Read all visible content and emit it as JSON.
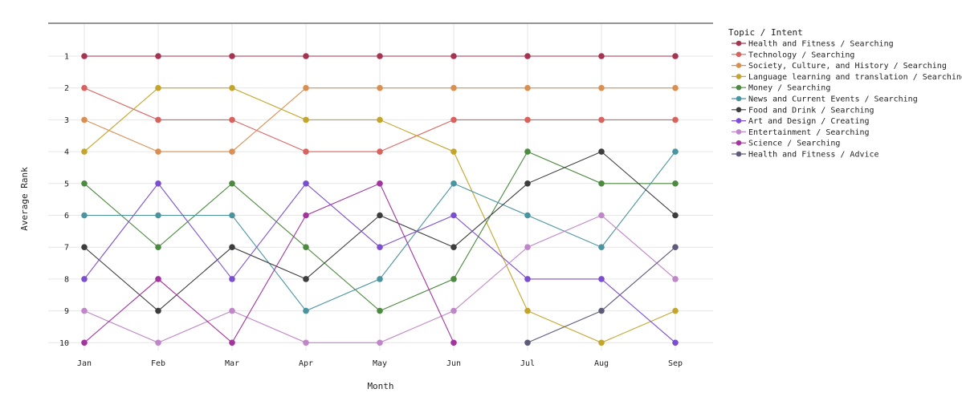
{
  "chart_data": {
    "type": "line",
    "title": "",
    "xlabel": "Month",
    "ylabel": "Average Rank",
    "categories": [
      "Jan",
      "Feb",
      "Mar",
      "Apr",
      "May",
      "Jun",
      "Jul",
      "Aug",
      "Sep"
    ],
    "y_ticks": [
      "1",
      "2",
      "3",
      "4",
      "5",
      "6",
      "7",
      "8",
      "9",
      "10"
    ],
    "ylim": [
      10,
      1
    ],
    "y_reversed": true,
    "grid": true,
    "legend_title": "Topic / Intent",
    "legend_position": "right",
    "series": [
      {
        "name": "Health and Fitness / Searching",
        "color": "#a6334f",
        "values": [
          1,
          1,
          1,
          1,
          1,
          1,
          1,
          1,
          1
        ]
      },
      {
        "name": "Technology / Searching",
        "color": "#d9625f",
        "values": [
          2,
          3,
          3,
          4,
          4,
          3,
          3,
          3,
          3
        ]
      },
      {
        "name": "Society, Culture, and History / Searching",
        "color": "#d98f52",
        "values": [
          3,
          4,
          4,
          2,
          2,
          2,
          2,
          2,
          2
        ]
      },
      {
        "name": "Language learning and translation / Searching",
        "color": "#c4a52c",
        "values": [
          4,
          2,
          2,
          3,
          3,
          4,
          9,
          10,
          9
        ]
      },
      {
        "name": "Money / Searching",
        "color": "#4c8a3f",
        "values": [
          5,
          7,
          5,
          7,
          9,
          8,
          4,
          5,
          5
        ]
      },
      {
        "name": "News and Current Events / Searching",
        "color": "#4a949f",
        "values": [
          6,
          6,
          6,
          9,
          8,
          5,
          6,
          7,
          4
        ]
      },
      {
        "name": "Food and Drink / Searching",
        "color": "#3d3d3d",
        "values": [
          7,
          9,
          7,
          8,
          6,
          7,
          5,
          4,
          6
        ]
      },
      {
        "name": "Art and Design / Creating",
        "color": "#7b4fcf",
        "values": [
          8,
          5,
          8,
          5,
          7,
          6,
          8,
          8,
          10
        ]
      },
      {
        "name": "Entertainment / Searching",
        "color": "#c086c9",
        "values": [
          9,
          10,
          9,
          10,
          10,
          9,
          7,
          6,
          8
        ]
      },
      {
        "name": "Science / Searching",
        "color": "#a3349e",
        "values": [
          10,
          8,
          10,
          6,
          5,
          10,
          null,
          null,
          null
        ]
      },
      {
        "name": "Health and Fitness / Advice",
        "color": "#5e5b7a",
        "values": [
          null,
          null,
          null,
          null,
          null,
          null,
          10,
          9,
          7
        ]
      }
    ]
  }
}
